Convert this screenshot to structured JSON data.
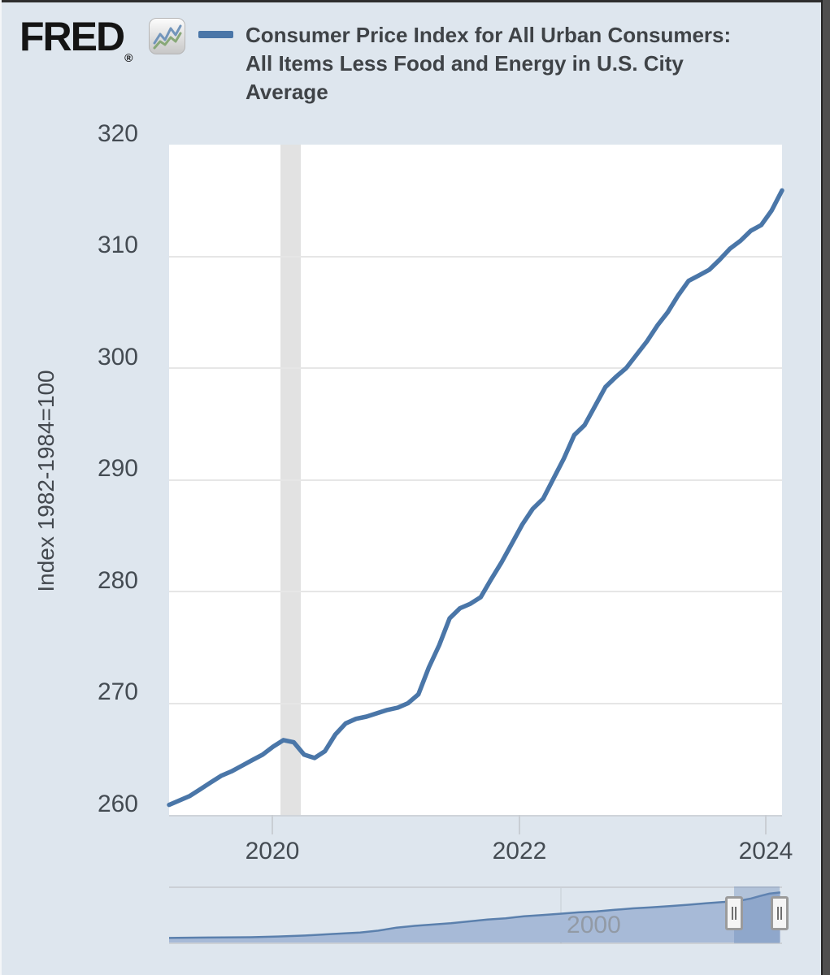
{
  "header": {
    "logo_text": "FRED",
    "logo_registered": "®",
    "logo_icon": "line-chart-icon"
  },
  "colors": {
    "background": "#dee6ee",
    "plot_background": "#ffffff",
    "line": "#4a76a8",
    "gridline": "#e6e6e6",
    "recession_band": "#e2e2e2",
    "navigator_fill": "#a7bad7",
    "navigator_line": "#5b80ad",
    "text": "#444b52"
  },
  "chart_data": {
    "type": "line",
    "title": "Consumer Price Index for All Urban Consumers: All Items Less Food and Energy in U.S. City Average",
    "ylabel": "Index 1982-1984=100",
    "xlabel": "",
    "ylim": [
      260,
      320
    ],
    "y_tick_values": [
      320,
      310,
      300,
      290,
      280,
      270,
      260
    ],
    "y_gridline_values": [
      310,
      300,
      290,
      280,
      270
    ],
    "x_tick_labels": [
      "2020",
      "2022",
      "2024"
    ],
    "grid": "horizontal-only",
    "legend_position": "top",
    "recession_band": {
      "start": "2020-02",
      "end": "2020-04"
    },
    "series": [
      {
        "name": "Consumer Price Index for All Urban Consumers: All Items Less Food and Energy in U.S. City Average",
        "frequency": "monthly",
        "start": "2019-03",
        "end": "2024-02",
        "values": [
          260.9,
          261.3,
          261.7,
          262.3,
          262.9,
          263.5,
          263.9,
          264.4,
          264.9,
          265.4,
          266.1,
          266.7,
          266.5,
          265.4,
          265.1,
          265.7,
          267.2,
          268.2,
          268.6,
          268.8,
          269.1,
          269.4,
          269.6,
          270.0,
          270.8,
          273.2,
          275.2,
          277.6,
          278.5,
          278.9,
          279.5,
          281.1,
          282.6,
          284.3,
          286.0,
          287.4,
          288.3,
          290.1,
          291.9,
          294.0,
          294.9,
          296.6,
          298.3,
          299.2,
          300.0,
          301.2,
          302.4,
          303.8,
          305.0,
          306.5,
          307.8,
          308.3,
          308.8,
          309.7,
          310.7,
          311.4,
          312.3,
          312.8,
          314.1,
          315.9
        ]
      }
    ],
    "navigator": {
      "description": "full-history range selector",
      "tick_label": "2000",
      "tick_year": 2000,
      "x": [
        1957,
        1960,
        1963,
        1966,
        1969,
        1972,
        1975,
        1978,
        1980,
        1982,
        1984,
        1986,
        1988,
        1990,
        1992,
        1994,
        1996,
        1998,
        2000,
        2002,
        2004,
        2006,
        2008,
        2010,
        2012,
        2014,
        2016,
        2018,
        2020,
        2021,
        2022,
        2023,
        2024.2
      ],
      "values": [
        28.5,
        30.6,
        31.8,
        33.5,
        37.7,
        44.0,
        53.9,
        63.3,
        75.0,
        94.0,
        105.0,
        113.5,
        122.3,
        133.5,
        144.8,
        152.9,
        165.6,
        173.4,
        181.3,
        190.4,
        196.6,
        205.9,
        215.5,
        221.3,
        229.8,
        237.9,
        247.6,
        256.0,
        266.8,
        278.0,
        294.0,
        308.0,
        316.0
      ],
      "selection": {
        "start_year": 2019.17,
        "end_year": 2024.17
      }
    }
  }
}
